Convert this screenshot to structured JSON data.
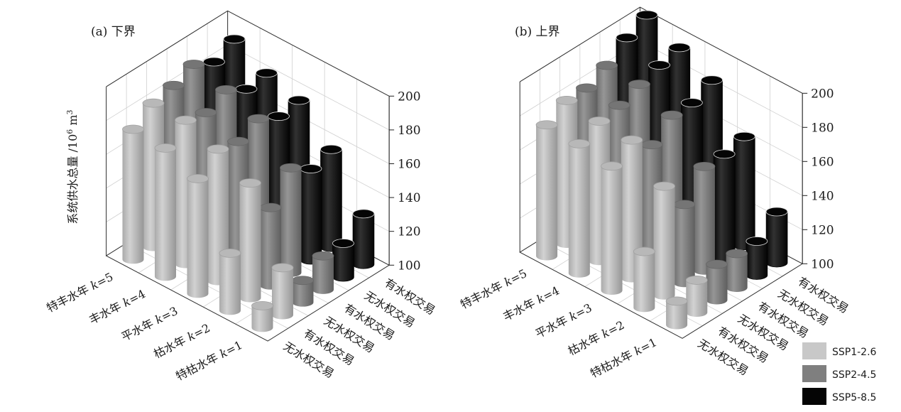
{
  "chart_data": {
    "type": "bar3d",
    "ylabel": "系统供水总量 /10⁶ m³",
    "zlim": [
      100,
      200
    ],
    "z_ticks": [
      "100",
      "120",
      "140",
      "160",
      "180",
      "200"
    ],
    "year_categories": [
      "特丰水年 k=5",
      "丰水年 k=4",
      "平水年 k=3",
      "枯水年 k=2",
      "特枯水年 k=1"
    ],
    "scenario_categories": [
      "无水权交易",
      "有水权交易",
      "无水权交易",
      "有水权交易",
      "无水权交易",
      "有水权交易"
    ],
    "legend": [
      {
        "name": "SSP1-2.6",
        "color": "#c8c8c8"
      },
      {
        "name": "SSP2-4.5",
        "color": "#7f7f7f"
      },
      {
        "name": "SSP5-8.5",
        "color": "#050505"
      }
    ],
    "panels": [
      {
        "title": "(a) 下界",
        "series": [
          {
            "name": "SSP1-2.6",
            "ssp": 0,
            "values": {
              "特丰水年 k=5": [
                177,
                185
              ],
              "丰水年 k=4": [
                176,
                185
              ],
              "平水年 k=3": [
                168,
                178
              ],
              "枯水年 k=2": [
                134,
                168
              ],
              "特枯水年 k=1": [
                113,
                128
              ]
            }
          },
          {
            "name": "SSP2-4.5",
            "ssp": 1,
            "values": {
              "特丰水年 k=5": [
                188,
                193
              ],
              "丰水年 k=4": [
                182,
                188
              ],
              "平水年 k=3": [
                175,
                181
              ],
              "枯水年 k=2": [
                146,
                162
              ],
              "特枯水年 k=1": [
                113,
                120
              ]
            }
          },
          {
            "name": "SSP5-8.5",
            "ssp": 2,
            "values": {
              "特丰水年 k=5": [
                187,
                193
              ],
              "丰水年 k=4": [
                181,
                183
              ],
              "平水年 k=3": [
                175,
                177
              ],
              "枯水年 k=2": [
                154,
                158
              ],
              "特枯水年 k=1": [
                120,
                130
              ]
            }
          }
        ]
      },
      {
        "title": "(b) 上界",
        "series": [
          {
            "name": "SSP1-2.6",
            "ssp": 0,
            "values": {
              "特丰水年 k=5": [
                177,
                184
              ],
              "丰水年 k=4": [
                176,
                182
              ],
              "平水年 k=3": [
                173,
                181
              ],
              "枯水年 k=2": [
                133,
                164
              ],
              "特枯水年 k=1": [
                114,
                119
              ]
            }
          },
          {
            "name": "SSP2-4.5",
            "ssp": 1,
            "values": {
              "特丰水年 k=5": [
                184,
                190
              ],
              "丰水年 k=4": [
                184,
                189
              ],
              "平水年 k=3": [
                171,
                181
              ],
              "枯水年 k=2": [
                146,
                161
              ],
              "特枯水年 k=1": [
                121,
                120
              ]
            }
          },
          {
            "name": "SSP5-8.5",
            "ssp": 2,
            "values": {
              "特丰水年 k=5": [
                199,
                205
              ],
              "丰水年 k=4": [
                193,
                196
              ],
              "平水年 k=3": [
                181,
                187
              ],
              "枯水年 k=2": [
                161,
                164
              ],
              "特枯水年 k=1": [
                120,
                130
              ]
            }
          }
        ]
      }
    ]
  }
}
